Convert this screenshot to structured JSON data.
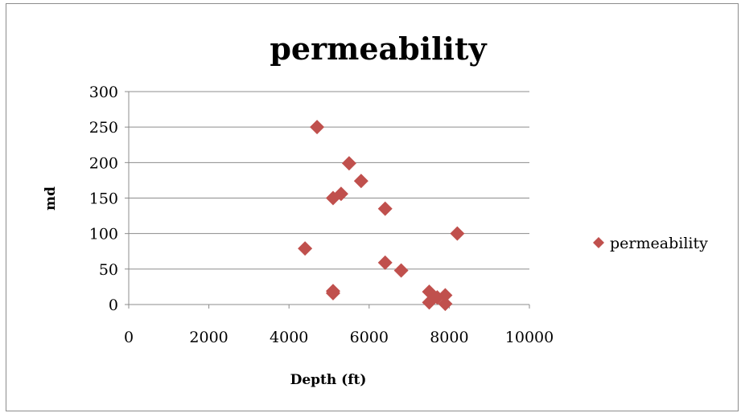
{
  "chart_data": {
    "type": "scatter",
    "title": "permeability",
    "xlabel": "Depth (ft)",
    "ylabel": "md",
    "xlim": [
      0,
      10000
    ],
    "ylim": [
      0,
      300
    ],
    "xticks": [
      0,
      2000,
      4000,
      6000,
      8000,
      10000
    ],
    "yticks": [
      0,
      50,
      100,
      150,
      200,
      250,
      300
    ],
    "grid": "horizontal",
    "legend_position": "right",
    "marker": "diamond",
    "series": [
      {
        "name": "permeability",
        "color": "#c0504d",
        "points": [
          {
            "x": 4700,
            "y": 250
          },
          {
            "x": 5500,
            "y": 199
          },
          {
            "x": 5800,
            "y": 174
          },
          {
            "x": 5300,
            "y": 156
          },
          {
            "x": 5100,
            "y": 150
          },
          {
            "x": 6400,
            "y": 135
          },
          {
            "x": 8200,
            "y": 100
          },
          {
            "x": 4400,
            "y": 79
          },
          {
            "x": 6400,
            "y": 59
          },
          {
            "x": 6800,
            "y": 48
          },
          {
            "x": 5100,
            "y": 19
          },
          {
            "x": 5100,
            "y": 16
          },
          {
            "x": 7500,
            "y": 18
          },
          {
            "x": 7700,
            "y": 10
          },
          {
            "x": 7900,
            "y": 13
          },
          {
            "x": 7500,
            "y": 3
          },
          {
            "x": 7900,
            "y": 1
          }
        ]
      }
    ]
  }
}
